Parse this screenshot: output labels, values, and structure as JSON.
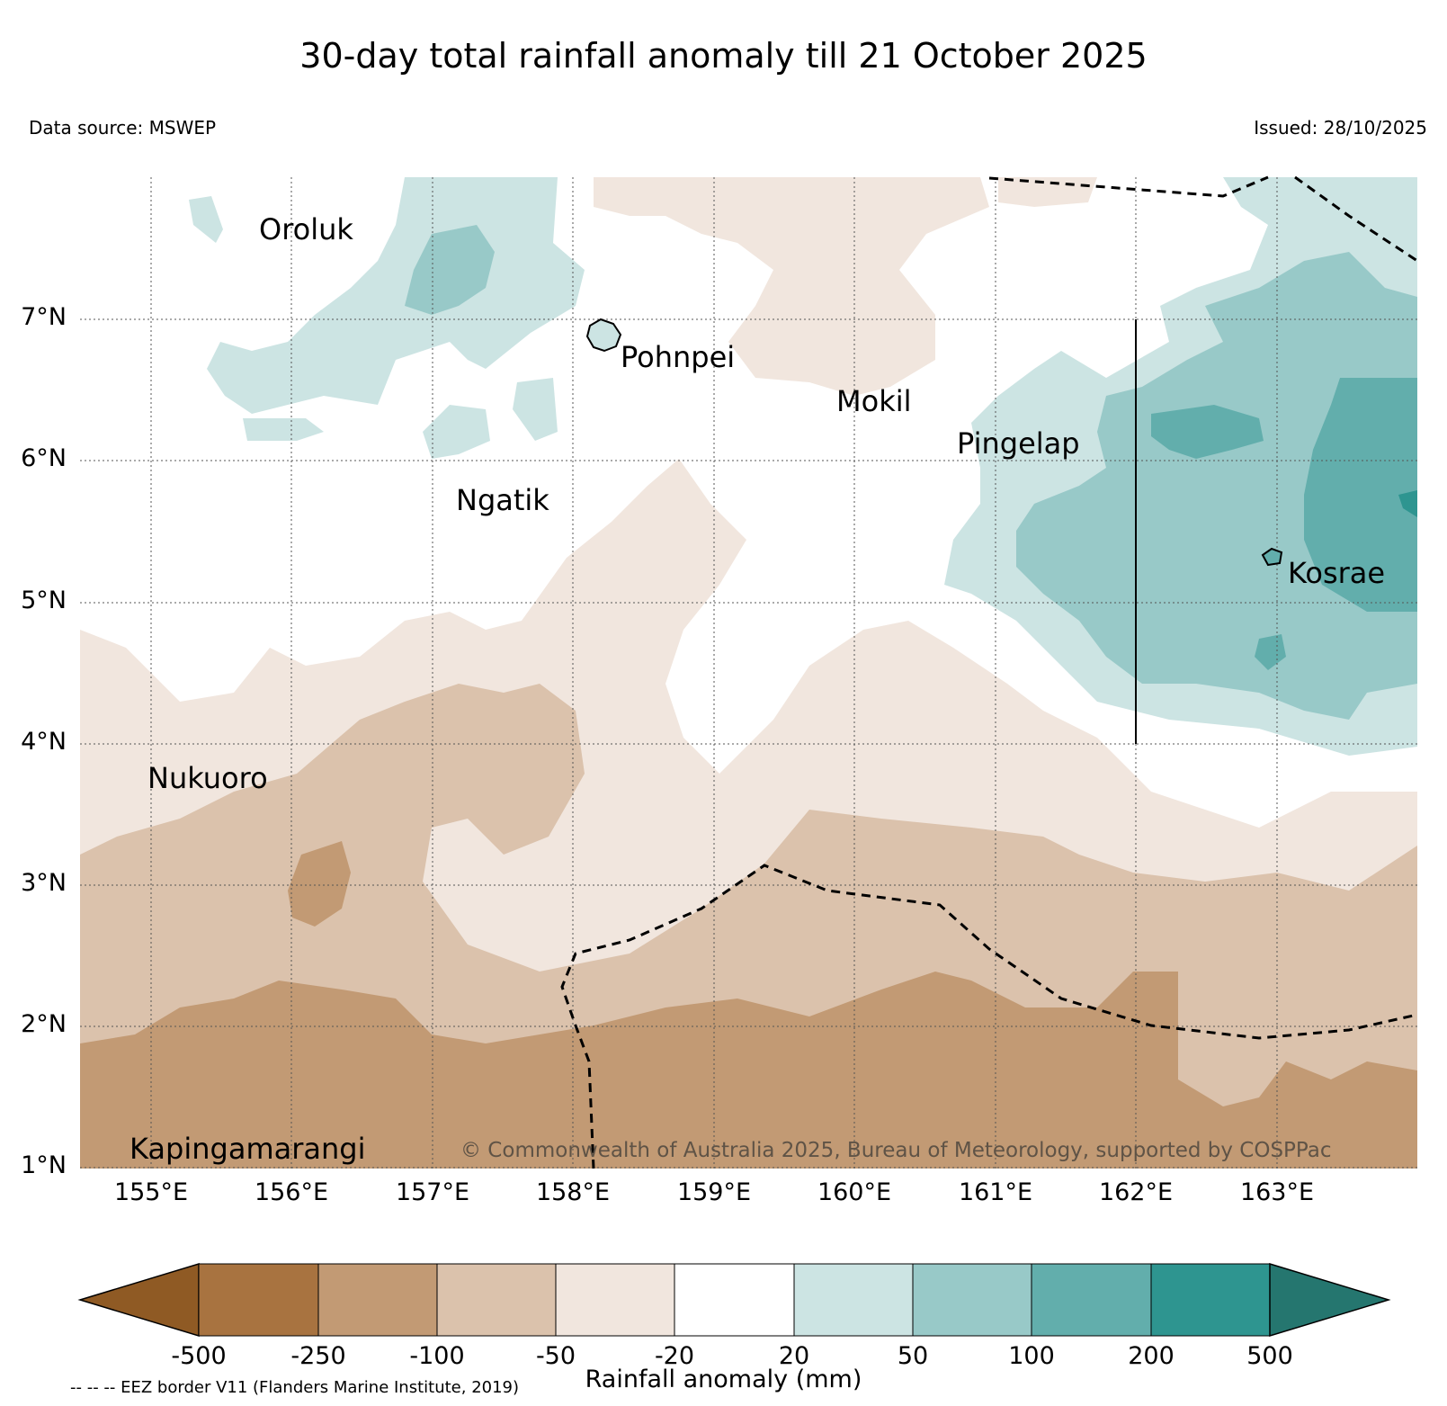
{
  "title": "30-day total rainfall anomaly till 21 October 2025",
  "data_source": "Data source: MSWEP",
  "issued": "Issued: 28/10/2025",
  "latitude_labels": [
    "7°N",
    "6°N",
    "5°N",
    "4°N",
    "3°N",
    "2°N",
    "1°N"
  ],
  "longitude_labels": [
    "155°E",
    "156°E",
    "157°E",
    "158°E",
    "159°E",
    "160°E",
    "161°E",
    "162°E",
    "163°E"
  ],
  "places": [
    {
      "name": "Oroluk",
      "lon": 155.8,
      "lat": 7.65
    },
    {
      "name": "Pohnpei",
      "lon": 158.2,
      "lat": 6.88
    },
    {
      "name": "Mokil",
      "lon": 159.8,
      "lat": 6.68
    },
    {
      "name": "Pingelap",
      "lon": 160.7,
      "lat": 6.21
    },
    {
      "name": "Ngatik",
      "lon": 157.3,
      "lat": 5.8
    },
    {
      "name": "Kosrae",
      "lon": 163.0,
      "lat": 5.32
    },
    {
      "name": "Nukuoro",
      "lon": 155.0,
      "lat": 3.85
    },
    {
      "name": "Kapingamarangi",
      "lon": 154.8,
      "lat": 1.08
    }
  ],
  "copyright": "© Commonwealth of Australia 2025, Bureau of Meteorology, supported by COSPPac",
  "colorbar": {
    "title": "Rainfall anomaly (mm)",
    "ticks": [
      "-500",
      "-250",
      "-100",
      "-50",
      "-20",
      "20",
      "50",
      "100",
      "200",
      "500"
    ],
    "colors": [
      "#8f5a24",
      "#a87340",
      "#c29a74",
      "#dbc2ac",
      "#f1e6de",
      "#ffffff",
      "#cce4e3",
      "#98c9c8",
      "#62aeac",
      "#2e9590",
      "#25766f"
    ]
  },
  "eez_note": "-- -- -- EEZ border V11 (Flanders Marine Institute, 2019)"
}
